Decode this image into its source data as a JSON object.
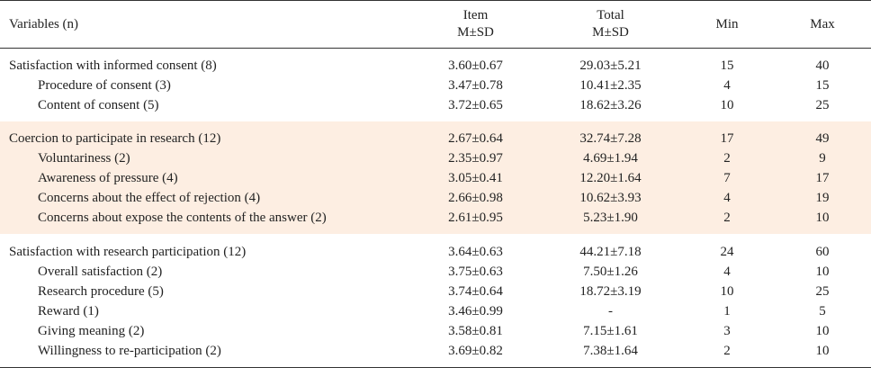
{
  "header": {
    "variables": "Variables (n)",
    "item_line1": "Item",
    "item_line2": "M±SD",
    "total_line1": "Total",
    "total_line2": "M±SD",
    "min": "Min",
    "max": "Max"
  },
  "groups": [
    {
      "rows": [
        {
          "label": "Satisfaction with informed consent (8)",
          "item": "3.60±0.67",
          "total": "29.03±5.21",
          "min": "15",
          "max": "40"
        },
        {
          "label": "Procedure of consent (3)",
          "item": "3.47±0.78",
          "total": "10.41±2.35",
          "min": "4",
          "max": "15"
        },
        {
          "label": "Content of consent (5)",
          "item": "3.72±0.65",
          "total": "18.62±3.26",
          "min": "10",
          "max": "25"
        }
      ]
    },
    {
      "rows": [
        {
          "label": "Coercion to participate in research (12)",
          "item": "2.67±0.64",
          "total": "32.74±7.28",
          "min": "17",
          "max": "49"
        },
        {
          "label": "Voluntariness (2)",
          "item": "2.35±0.97",
          "total": "4.69±1.94",
          "min": "2",
          "max": "9"
        },
        {
          "label": "Awareness of pressure (4)",
          "item": "3.05±0.41",
          "total": "12.20±1.64",
          "min": "7",
          "max": "17"
        },
        {
          "label": "Concerns about the effect of rejection (4)",
          "item": "2.66±0.98",
          "total": "10.62±3.93",
          "min": "4",
          "max": "19"
        },
        {
          "label": "Concerns about expose the contents of the answer (2)",
          "item": "2.61±0.95",
          "total": "5.23±1.90",
          "min": "2",
          "max": "10"
        }
      ]
    },
    {
      "rows": [
        {
          "label": "Satisfaction with research participation (12)",
          "item": "3.64±0.63",
          "total": "44.21±7.18",
          "min": "24",
          "max": "60"
        },
        {
          "label": "Overall satisfaction (2)",
          "item": "3.75±0.63",
          "total": "7.50±1.26",
          "min": "4",
          "max": "10"
        },
        {
          "label": "Research procedure (5)",
          "item": "3.74±0.64",
          "total": "18.72±3.19",
          "min": "10",
          "max": "25"
        },
        {
          "label": "Reward (1)",
          "item": "3.46±0.99",
          "total": "-",
          "min": "1",
          "max": "5"
        },
        {
          "label": "Giving meaning (2)",
          "item": "3.58±0.81",
          "total": "7.15±1.61",
          "min": "3",
          "max": "10"
        },
        {
          "label": "Willingness to re-participation (2)",
          "item": "3.69±0.82",
          "total": "7.38±1.64",
          "min": "2",
          "max": "10"
        }
      ]
    }
  ],
  "colors": {
    "band": "#fdeee2",
    "rule": "#333333",
    "text": "#222222"
  }
}
